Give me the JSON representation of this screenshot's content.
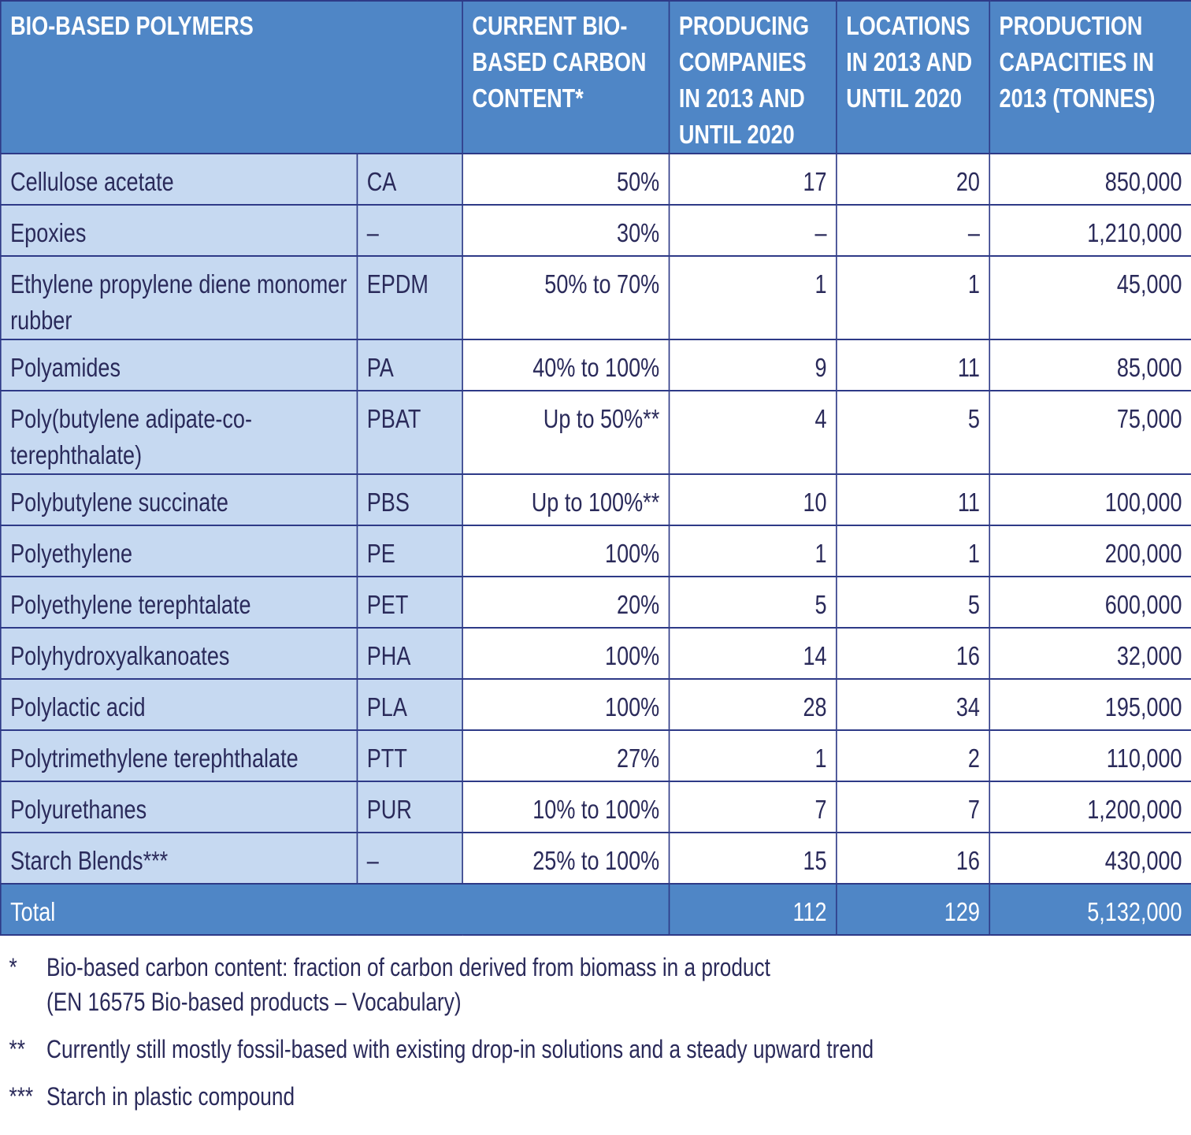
{
  "table": {
    "header": [
      "BIO-BASED POLYMERS",
      "CURRENT BIO-BASED CARBON CONTENT*",
      "PRODUCING COMPANIES IN 2013 AND UNTIL 2020",
      "LOCATIONS IN 2013 AND UNTIL 2020",
      "PRODUCTION CAPACITIES IN 2013 (TONNES)"
    ],
    "rows": [
      [
        "Cellulose acetate",
        "CA",
        "50%",
        "17",
        "20",
        "850,000"
      ],
      [
        "Epoxies",
        "–",
        "30%",
        "–",
        "–",
        "1,210,000"
      ],
      [
        "Ethylene propylene diene monomer rubber",
        "EPDM",
        "50% to 70%",
        "1",
        "1",
        "45,000"
      ],
      [
        "Polyamides",
        "PA",
        "40% to 100%",
        "9",
        "11",
        "85,000"
      ],
      [
        "Poly(butylene adipate-co-terephthalate)",
        "PBAT",
        "Up to 50%**",
        "4",
        "5",
        "75,000"
      ],
      [
        "Polybutylene succinate",
        "PBS",
        "Up to 100%**",
        "10",
        "11",
        "100,000"
      ],
      [
        "Polyethylene",
        "PE",
        "100%",
        "1",
        "1",
        "200,000"
      ],
      [
        "Polyethylene terephtalate",
        "PET",
        "20%",
        "5",
        "5",
        "600,000"
      ],
      [
        "Polyhydroxyalkanoates",
        "PHA",
        "100%",
        "14",
        "16",
        "32,000"
      ],
      [
        "Polylactic acid",
        "PLA",
        "100%",
        "28",
        "34",
        "195,000"
      ],
      [
        "Polytrimethylene terephthalate",
        "PTT",
        "27%",
        "1",
        "2",
        "110,000"
      ],
      [
        "Polyurethanes",
        "PUR",
        "10% to 100%",
        "7",
        "7",
        "1,200,000"
      ],
      [
        "Starch Blends***",
        "–",
        "25% to 100%",
        "15",
        "16",
        "430,000"
      ]
    ],
    "total": [
      "Total",
      "112",
      "129",
      "5,132,000"
    ]
  },
  "footnotes": [
    {
      "mark": "*",
      "lines": [
        "Bio-based carbon content: fraction of carbon derived from biomass in a product",
        "(EN 16575 Bio-based products – Vocabulary)"
      ]
    },
    {
      "mark": "**",
      "lines": [
        "Currently still mostly fossil-based with existing drop-in solutions and a steady upward trend"
      ]
    },
    {
      "mark": "***",
      "lines": [
        "Starch in plastic compound"
      ]
    }
  ]
}
